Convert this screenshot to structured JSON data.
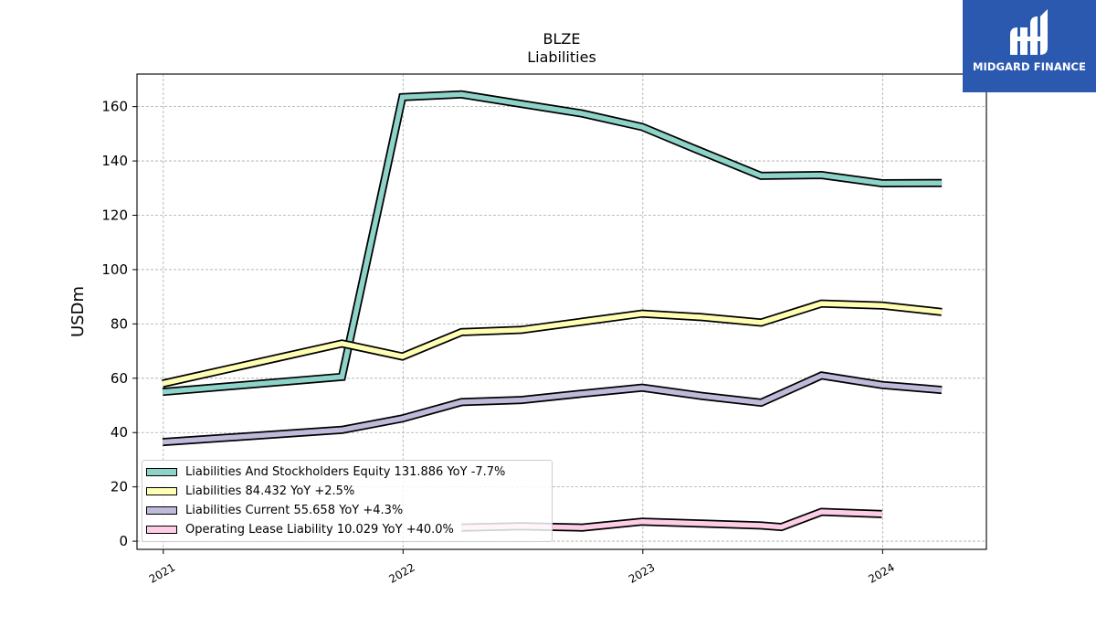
{
  "chart_data": {
    "type": "line",
    "title": "BLZE",
    "subtitle": "Liabilities",
    "xlabel": "",
    "ylabel": "USDm",
    "xlim": [
      "2020-11-22",
      "2024-06-07"
    ],
    "ylim": [
      -3,
      172
    ],
    "xticks": [
      {
        "date": "2021-01-01",
        "label": "2021"
      },
      {
        "date": "2022-01-01",
        "label": "2022"
      },
      {
        "date": "2023-01-01",
        "label": "2023"
      },
      {
        "date": "2024-01-01",
        "label": "2024"
      }
    ],
    "yticks": [
      0,
      20,
      40,
      60,
      80,
      100,
      120,
      140,
      160
    ],
    "grid": true,
    "legend_position": "lower-left",
    "series": [
      {
        "name": "Liabilities And Stockholders Equity",
        "legend": "Liabilities And Stockholders Equity  131.886 YoY -7.7%",
        "color": "#8dd3c7",
        "points": [
          [
            "2020-12-31",
            55.0
          ],
          [
            "2021-09-30",
            60.5
          ],
          [
            "2021-12-31",
            163.5
          ],
          [
            "2022-03-31",
            164.5
          ],
          [
            "2022-06-30",
            161.0
          ],
          [
            "2022-09-30",
            157.5
          ],
          [
            "2022-12-31",
            152.5
          ],
          [
            "2023-03-31",
            143.5
          ],
          [
            "2023-06-30",
            134.5
          ],
          [
            "2023-09-30",
            134.8
          ],
          [
            "2023-12-31",
            131.8
          ],
          [
            "2024-03-31",
            131.9
          ]
        ]
      },
      {
        "name": "Liabilities",
        "legend": "Liabilities  84.432 YoY +2.5%",
        "color": "#ffffb3",
        "points": [
          [
            "2020-12-31",
            58.0
          ],
          [
            "2021-09-30",
            72.8
          ],
          [
            "2021-12-31",
            68.0
          ],
          [
            "2022-03-31",
            77.0
          ],
          [
            "2022-06-30",
            77.8
          ],
          [
            "2022-09-30",
            80.8
          ],
          [
            "2022-12-31",
            83.8
          ],
          [
            "2023-03-31",
            82.5
          ],
          [
            "2023-06-30",
            80.5
          ],
          [
            "2023-09-30",
            87.5
          ],
          [
            "2023-12-31",
            86.8
          ],
          [
            "2024-03-31",
            84.4
          ]
        ]
      },
      {
        "name": "Liabilities Current",
        "legend": "Liabilities Current  55.658 YoY +4.3%",
        "color": "#bebada",
        "points": [
          [
            "2020-12-31",
            36.5
          ],
          [
            "2021-09-30",
            41.0
          ],
          [
            "2021-12-31",
            45.2
          ],
          [
            "2022-03-31",
            51.2
          ],
          [
            "2022-06-30",
            52.0
          ],
          [
            "2022-09-30",
            54.3
          ],
          [
            "2022-12-31",
            56.5
          ],
          [
            "2023-03-31",
            53.5
          ],
          [
            "2023-06-30",
            51.0
          ],
          [
            "2023-09-30",
            61.0
          ],
          [
            "2023-12-31",
            57.5
          ],
          [
            "2024-03-31",
            55.7
          ]
        ]
      },
      {
        "name": "Operating Lease Liability",
        "legend": "Operating Lease Liability  10.029 YoY +40.0%",
        "color": "#fccde5",
        "points": [
          [
            "2022-03-31",
            5.0
          ],
          [
            "2022-06-30",
            5.5
          ],
          [
            "2022-09-30",
            5.0
          ],
          [
            "2022-12-31",
            7.2
          ],
          [
            "2023-03-31",
            6.5
          ],
          [
            "2023-06-30",
            5.8
          ],
          [
            "2023-07-31",
            5.2
          ],
          [
            "2023-09-30",
            10.8
          ],
          [
            "2023-12-31",
            10.0
          ]
        ]
      }
    ]
  },
  "brand": {
    "name": "MIDGARD FINANCE",
    "background": "#2b59b0",
    "text_color": "#ffffff"
  }
}
